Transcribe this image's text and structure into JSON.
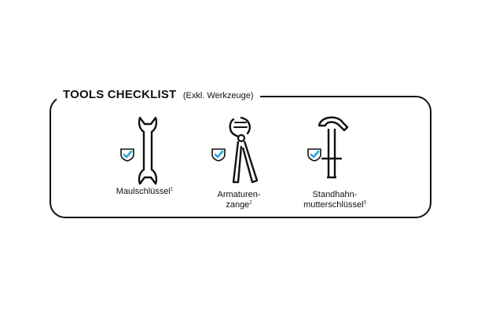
{
  "header": {
    "title": "TOOLS CHECKLIST",
    "subtitle": "(Exkl. Werkzeuge)"
  },
  "colors": {
    "check_accent": "#2ba7d8",
    "stroke": "#111111"
  },
  "tools": [
    {
      "lines": [
        "Maulschlüssel"
      ],
      "sup": "1",
      "icon": "open-end-wrench-icon",
      "checked": true
    },
    {
      "lines": [
        "Armaturen-",
        "zange"
      ],
      "sup": "2",
      "icon": "pliers-icon",
      "checked": true
    },
    {
      "lines": [
        "Standhahn-",
        "mutterschlüssel"
      ],
      "sup": "3",
      "icon": "tap-nut-wrench-icon",
      "checked": true
    }
  ]
}
